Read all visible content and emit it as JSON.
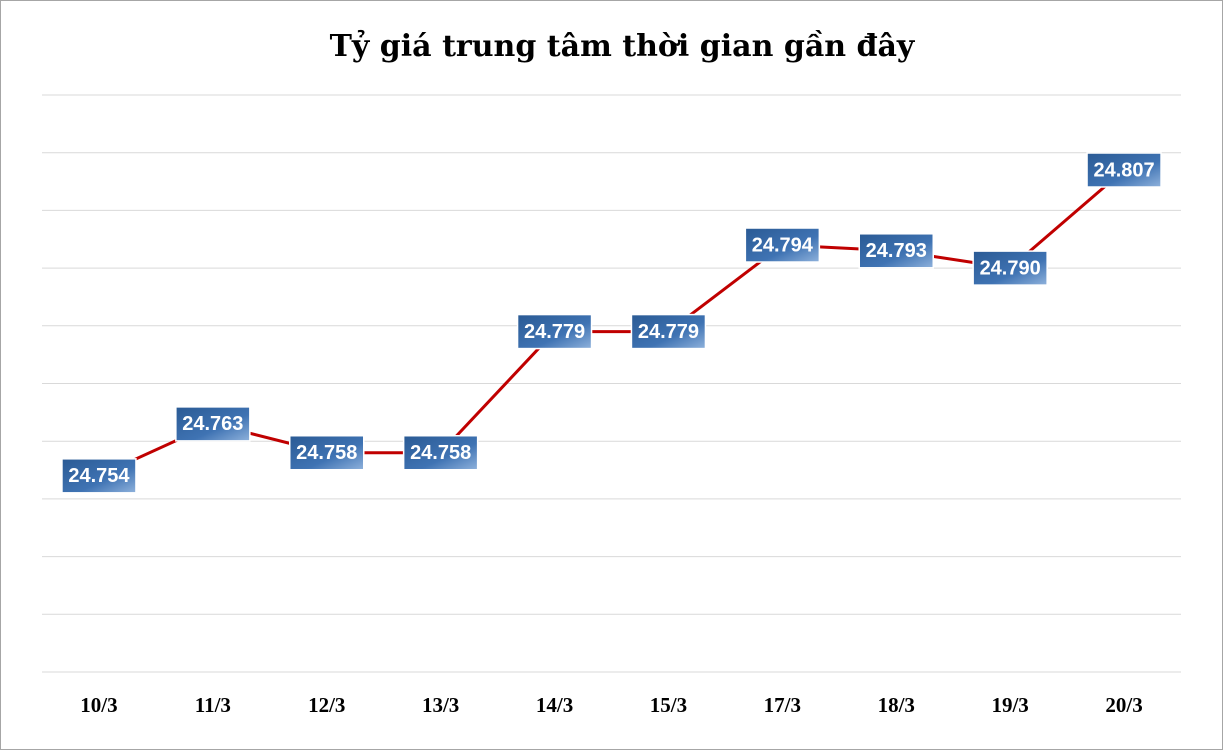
{
  "chart_data": {
    "type": "line",
    "title": "Tỷ giá trung tâm thời gian gần đây",
    "categories": [
      "10/3",
      "11/3",
      "12/3",
      "13/3",
      "14/3",
      "15/3",
      "17/3",
      "18/3",
      "19/3",
      "20/3"
    ],
    "values": [
      24754,
      24763,
      24758,
      24758,
      24779,
      24779,
      24794,
      24793,
      24790,
      24807
    ],
    "value_labels": [
      "24.754",
      "24.763",
      "24.758",
      "24.758",
      "24.779",
      "24.779",
      "24.794",
      "24.793",
      "24.790",
      "24.807"
    ],
    "color": "#c00000",
    "ylim": [
      24720,
      24820
    ],
    "yticks": [
      24720,
      24730,
      24740,
      24750,
      24760,
      24770,
      24780,
      24790,
      24800,
      24810,
      24820
    ],
    "grid": true
  }
}
